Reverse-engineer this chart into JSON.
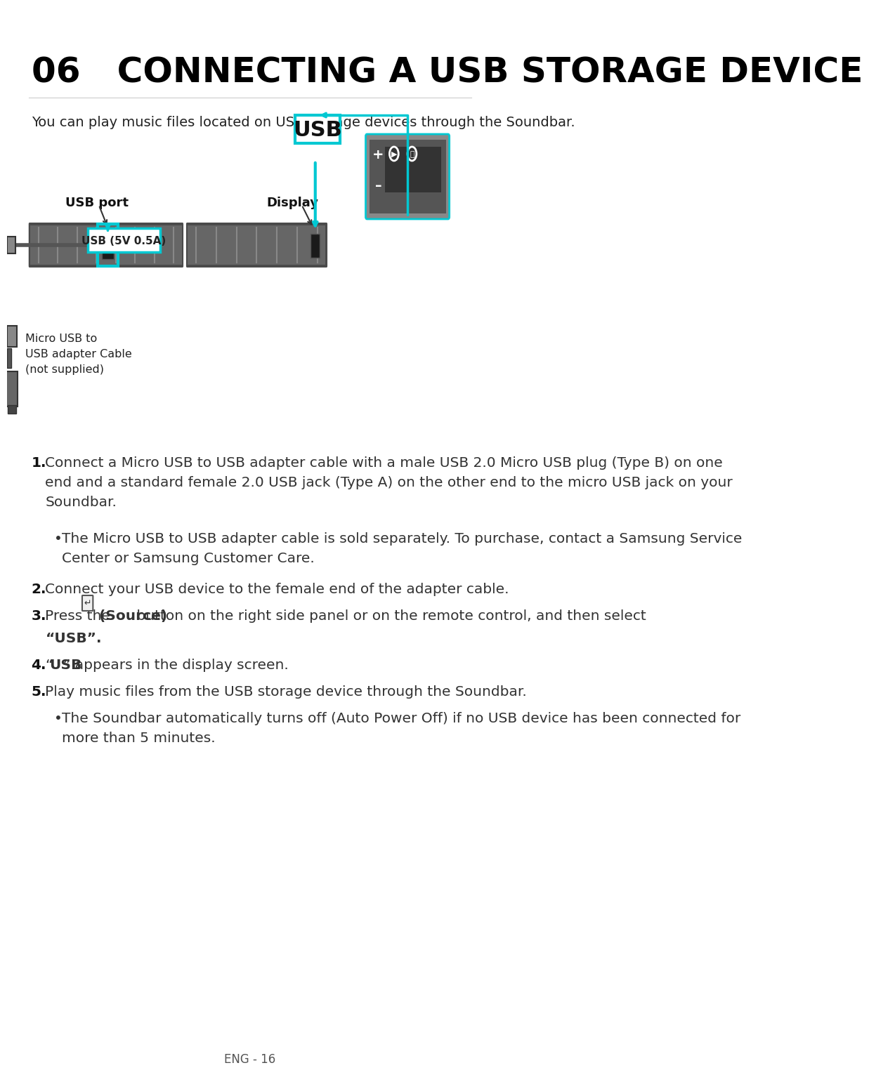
{
  "title": "06   CONNECTING A USB STORAGE DEVICE",
  "subtitle": "You can play music files located on USB storage devices through the Soundbar.",
  "bg_color": "#ffffff",
  "title_color": "#000000",
  "body_color": "#333333",
  "cyan_color": "#00c8d2",
  "step1_main": "Connect a Micro USB to USB adapter cable with a male USB 2.0 Micro USB plug (Type B) on one\nend and a standard female 2.0 USB jack (Type A) on the other end to the micro USB jack on your\nSoundbar.",
  "step1_bullet": "The Micro USB to USB adapter cable is sold separately. To purchase, contact a Samsung Service\nCenter or Samsung Customer Care.",
  "step2": "Connect your USB device to the female end of the adapter cable.",
  "step3_pre": "Press the ",
  "step3_bold": "(Source)",
  "step3_post": " button on the right side panel or on the remote control, and then select",
  "step3_quote": "“USB”.",
  "step4_pre": "“",
  "step4_bold": "USB",
  "step4_post": "” appears in the display screen.",
  "step5_main": "Play music files from the USB storage device through the Soundbar.",
  "step5_bullet": "The Soundbar automatically turns off (Auto Power Off) if no USB device has been connected for\nmore than 5 minutes.",
  "footer": "ENG - 16",
  "usb_port_label": "USB port",
  "display_label": "Display",
  "usb_box_label": "USB (5V 0.5A)",
  "micro_usb_label": "Micro USB to\nUSB adapter Cable\n(not supplied)",
  "usb_display_label": "USB"
}
